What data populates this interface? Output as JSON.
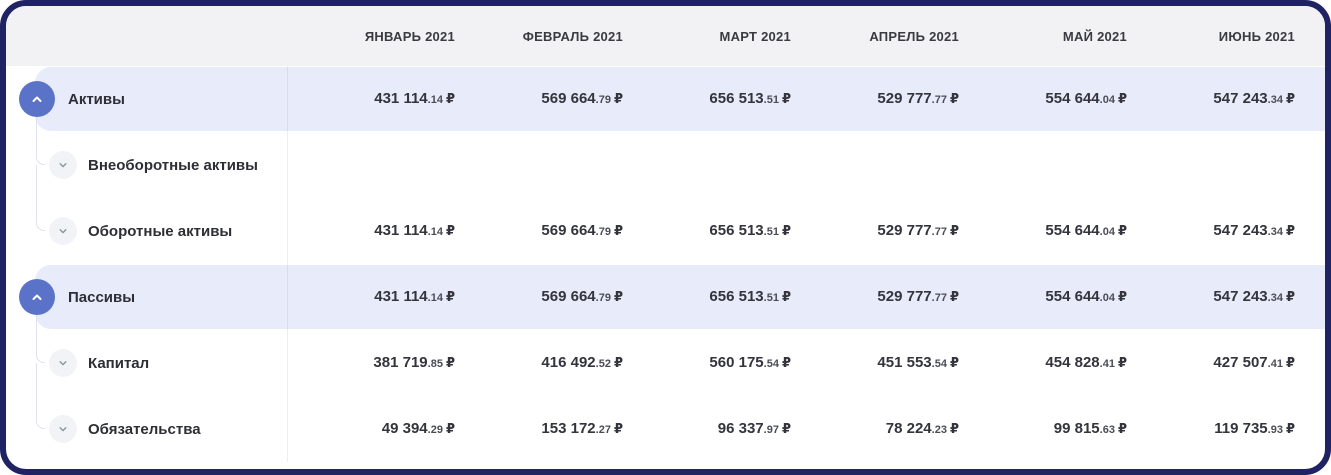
{
  "table": {
    "columns": [
      "ЯНВАРЬ 2021",
      "ФЕВРАЛЬ 2021",
      "МАРТ 2021",
      "АПРЕЛЬ 2021",
      "МАЙ 2021",
      "ИЮНЬ 2021"
    ],
    "currency": "₽",
    "rows": [
      {
        "label": "Активы",
        "level": 0,
        "state": "expanded",
        "highlight": true,
        "values": [
          "431 114.14",
          "569 664.79",
          "656 513.51",
          "529 777.77",
          "554 644.04",
          "547 243.34"
        ]
      },
      {
        "label": "Внеоборотные активы",
        "level": 1,
        "state": "collapsed",
        "highlight": false,
        "values": [
          "",
          "",
          "",
          "",
          "",
          ""
        ]
      },
      {
        "label": "Оборотные активы",
        "level": 1,
        "state": "collapsed",
        "highlight": false,
        "values": [
          "431 114.14",
          "569 664.79",
          "656 513.51",
          "529 777.77",
          "554 644.04",
          "547 243.34"
        ]
      },
      {
        "label": "Пассивы",
        "level": 0,
        "state": "expanded",
        "highlight": true,
        "values": [
          "431 114.14",
          "569 664.79",
          "656 513.51",
          "529 777.77",
          "554 644.04",
          "547 243.34"
        ]
      },
      {
        "label": "Капитал",
        "level": 1,
        "state": "collapsed",
        "highlight": false,
        "values": [
          "381 719.85",
          "416 492.52",
          "560 175.54",
          "451 553.54",
          "454 828.41",
          "427 507.41"
        ]
      },
      {
        "label": "Обязательства",
        "level": 1,
        "state": "collapsed",
        "highlight": false,
        "values": [
          "49 394.29",
          "153 172.27",
          "96 337.97",
          "78 224.23",
          "99 815.63",
          "119 735.93"
        ]
      }
    ],
    "colors": {
      "frame": "#1f2363",
      "header_bg": "#f2f2f4",
      "highlight_row_bg": "#e8ecfa",
      "accent_circle": "#5a73c9",
      "child_circle_bg": "#f1f3f7",
      "text": "#33343c"
    }
  }
}
